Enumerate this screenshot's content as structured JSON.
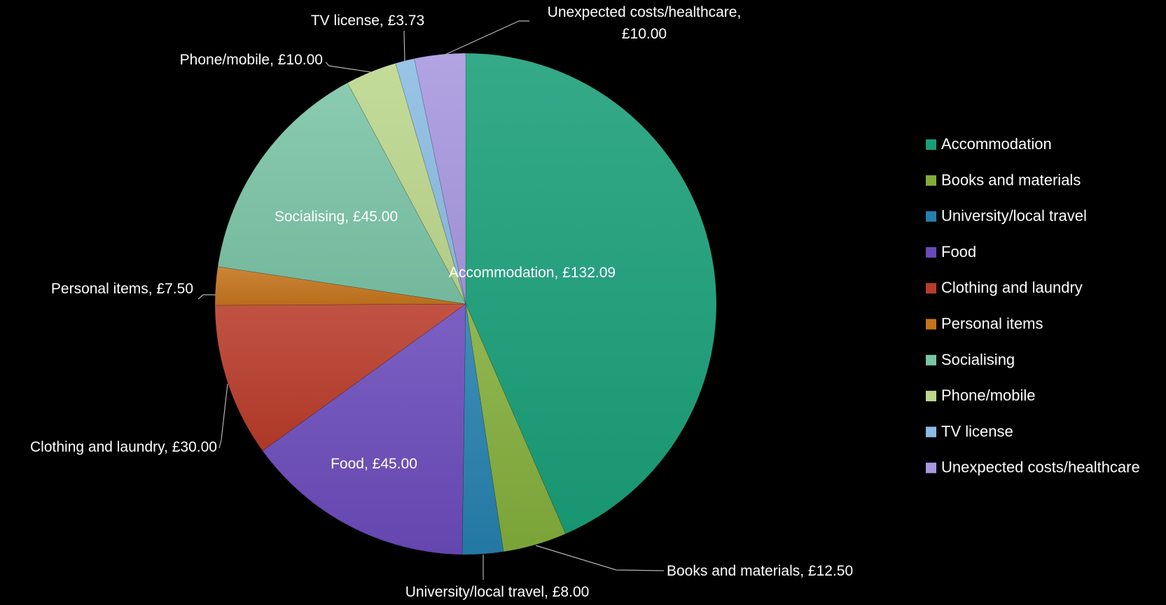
{
  "chart_data": {
    "type": "pie",
    "currency": "£",
    "categories": [
      "Accommodation",
      "Books and materials",
      "University/local travel",
      "Food",
      "Clothing and laundry",
      "Personal items",
      "Socialising",
      "Phone/mobile",
      "TV license",
      "Unexpected costs/healthcare"
    ],
    "values": [
      132.09,
      12.5,
      8.0,
      45.0,
      30.0,
      7.5,
      45.0,
      10.0,
      3.73,
      10.0
    ],
    "data_labels": [
      "Accommodation, £132.09",
      "Books and materials, £12.50",
      "University/local travel, £8.00",
      "Food, £45.00",
      "Clothing and laundry, £30.00",
      "Personal items, £7.50",
      "Socialising, £45.00",
      "Phone/mobile, £10.00",
      "TV license, £3.73",
      "Unexpected costs/healthcare, £10.00"
    ],
    "colors": [
      "#1a9e78",
      "#82ad3b",
      "#2580ad",
      "#6a4aba",
      "#b83c2a",
      "#c4741d",
      "#7ac4a6",
      "#bcd78c",
      "#8bbce3",
      "#a898df"
    ],
    "legend_position": "right",
    "start_angle": "12 o'clock",
    "direction": "clockwise"
  }
}
